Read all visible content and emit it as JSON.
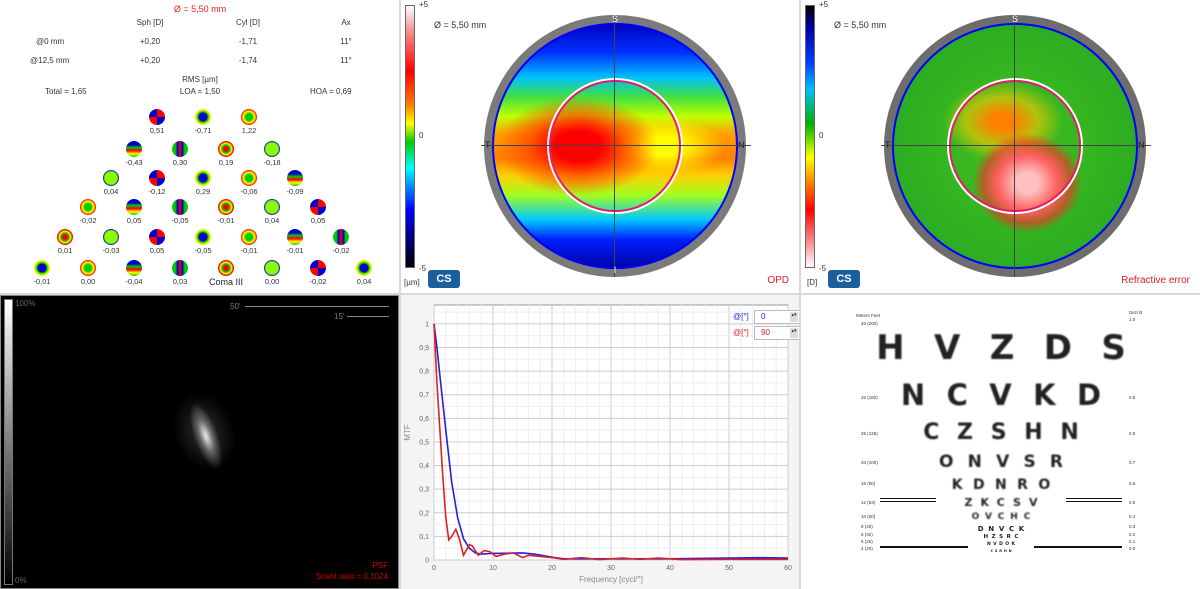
{
  "summary": {
    "diameter": "Ø = 5,50 mm",
    "headers": [
      "Sph [D]",
      "Cyl [D]",
      "Ax"
    ],
    "rows": [
      {
        "label": "@0 mm",
        "sph": "+0,20",
        "cyl": "-1,71",
        "ax": "11°"
      },
      {
        "label": "@12,5 mm",
        "sph": "+0,20",
        "cyl": "-1,74",
        "ax": "11°"
      }
    ],
    "rms_title": "RMS [µm]",
    "total": "Total = 1,65",
    "loa": "LOA = 1,50",
    "hoa": "HOA = 0,69"
  },
  "zernike": {
    "rows": [
      [
        "0,51",
        "-0,71",
        "1,22"
      ],
      [
        "-0,43",
        "0,30",
        "0,19",
        "-0,18"
      ],
      [
        "0,04",
        "-0,12",
        "0,29",
        "-0,06",
        "-0,09"
      ],
      [
        "-0,02",
        "0,05",
        "-0,05",
        "-0,01",
        "0,04",
        "0,05"
      ],
      [
        "0,01",
        "-0,03",
        "0,05",
        "-0,05",
        "-0,01",
        "-0,01",
        "-0,02"
      ],
      [
        "-0,01",
        "0,00",
        "-0,04",
        "0,03",
        "Coma III",
        "0,00",
        "-0,02",
        "0,04"
      ]
    ]
  },
  "opd_map": {
    "diameter": "Ø = 5,50 mm",
    "scale_max": "+5",
    "scale_mid": "0",
    "scale_min": "-5",
    "unit": "[µm]",
    "sup": "S",
    "temp": "T",
    "nas": "N",
    "inf": "I",
    "logo": "CS",
    "label": "OPD"
  },
  "refraction_map": {
    "diameter": "Ø = 5,50 mm",
    "scale_max": "+5",
    "scale_mid": "0",
    "scale_min": "-5",
    "unit": "[D]",
    "sup": "S",
    "temp": "T",
    "nas": "N",
    "logo": "CS",
    "label": "Refractive error"
  },
  "psf": {
    "scale_top": "100%",
    "scale_bottom": "0%",
    "bar1": "50'",
    "bar2": "15'",
    "label": "PSF",
    "strehl": "Strehl ratio = 0,1024"
  },
  "mtf": {
    "legend": [
      {
        "label": "@[°]",
        "value": "0",
        "color": "#2020e0"
      },
      {
        "label": "@[°]",
        "value": "90",
        "color": "#e02020"
      }
    ],
    "chart_data": {
      "type": "line",
      "xlabel": "Frequency [cycl/°]",
      "ylabel": "MTF",
      "xlim": [
        0,
        60
      ],
      "ylim": [
        0,
        1.08
      ],
      "xticks": [
        "0",
        "10",
        "20",
        "30",
        "40",
        "50",
        "60"
      ],
      "yticks": [
        "0",
        "0,1",
        "0,2",
        "0,3",
        "0,4",
        "0,5",
        "0,6",
        "0,7",
        "0,8",
        "0,9",
        "1"
      ],
      "grid": true,
      "series": [
        {
          "name": "0",
          "color": "#2020e0",
          "x": [
            0,
            0.5,
            1,
            2,
            3,
            4,
            5,
            6,
            7,
            8,
            10,
            15,
            17,
            20,
            22,
            30,
            40,
            50,
            55,
            60
          ],
          "y": [
            1,
            0.9,
            0.78,
            0.55,
            0.33,
            0.18,
            0.09,
            0.05,
            0.03,
            0.025,
            0.028,
            0.03,
            0.025,
            0.012,
            0.005,
            0.005,
            0.005,
            0.008,
            0.01,
            0.008
          ]
        },
        {
          "name": "90",
          "color": "#e02020",
          "x": [
            0,
            0.5,
            1,
            1.5,
            2,
            2.5,
            3,
            3.7,
            4.3,
            5,
            6,
            6.5,
            7.5,
            8.5,
            9.5,
            10.5,
            12,
            13.5,
            15,
            16,
            18,
            20,
            22,
            25,
            28,
            32,
            35,
            38,
            42,
            50,
            60
          ],
          "y": [
            1,
            0.75,
            0.55,
            0.35,
            0.18,
            0.085,
            0.1,
            0.13,
            0.09,
            0.02,
            0.065,
            0.06,
            0.02,
            0.04,
            0.035,
            0.015,
            0.025,
            0.03,
            0.01,
            0.02,
            0.015,
            0.01,
            0.003,
            0.01,
            0.002,
            0.008,
            0.003,
            0.008,
            0.002,
            0.003,
            0.003
          ]
        }
      ]
    }
  },
  "acuity": {
    "left_header": "Meters  Feet",
    "right_header": "Dezi B",
    "rows": [
      {
        "letters": "HVZDS",
        "left": "40 (200)",
        "right": "1.0"
      },
      {
        "letters": "NCVKD",
        "left": "32 (160)",
        "right": "0.9"
      },
      {
        "letters": "CZSHN",
        "left": "25 (125)",
        "right": "0.8"
      },
      {
        "letters": "ONVSR",
        "left": "20 (100)",
        "right": "0.7"
      },
      {
        "letters": "KDNRO",
        "left": "16 (80)",
        "right": "0.6"
      },
      {
        "letters": "ZKCSV",
        "left": "12 (63)",
        "right": "0.5"
      },
      {
        "letters": "OVCHC",
        "left": "10 (50)",
        "right": "0.4"
      },
      {
        "letters": "DNVCK",
        "left": "8 (40)",
        "right": "0.3"
      },
      {
        "letters": "HZSRC",
        "left": "6 (32)",
        "right": "0.2"
      },
      {
        "letters": "NVDOK",
        "left": "5 (25)",
        "right": "0.1"
      },
      {
        "letters": "CSRHN",
        "left": "4 (20)",
        "right": "0.0"
      }
    ]
  }
}
